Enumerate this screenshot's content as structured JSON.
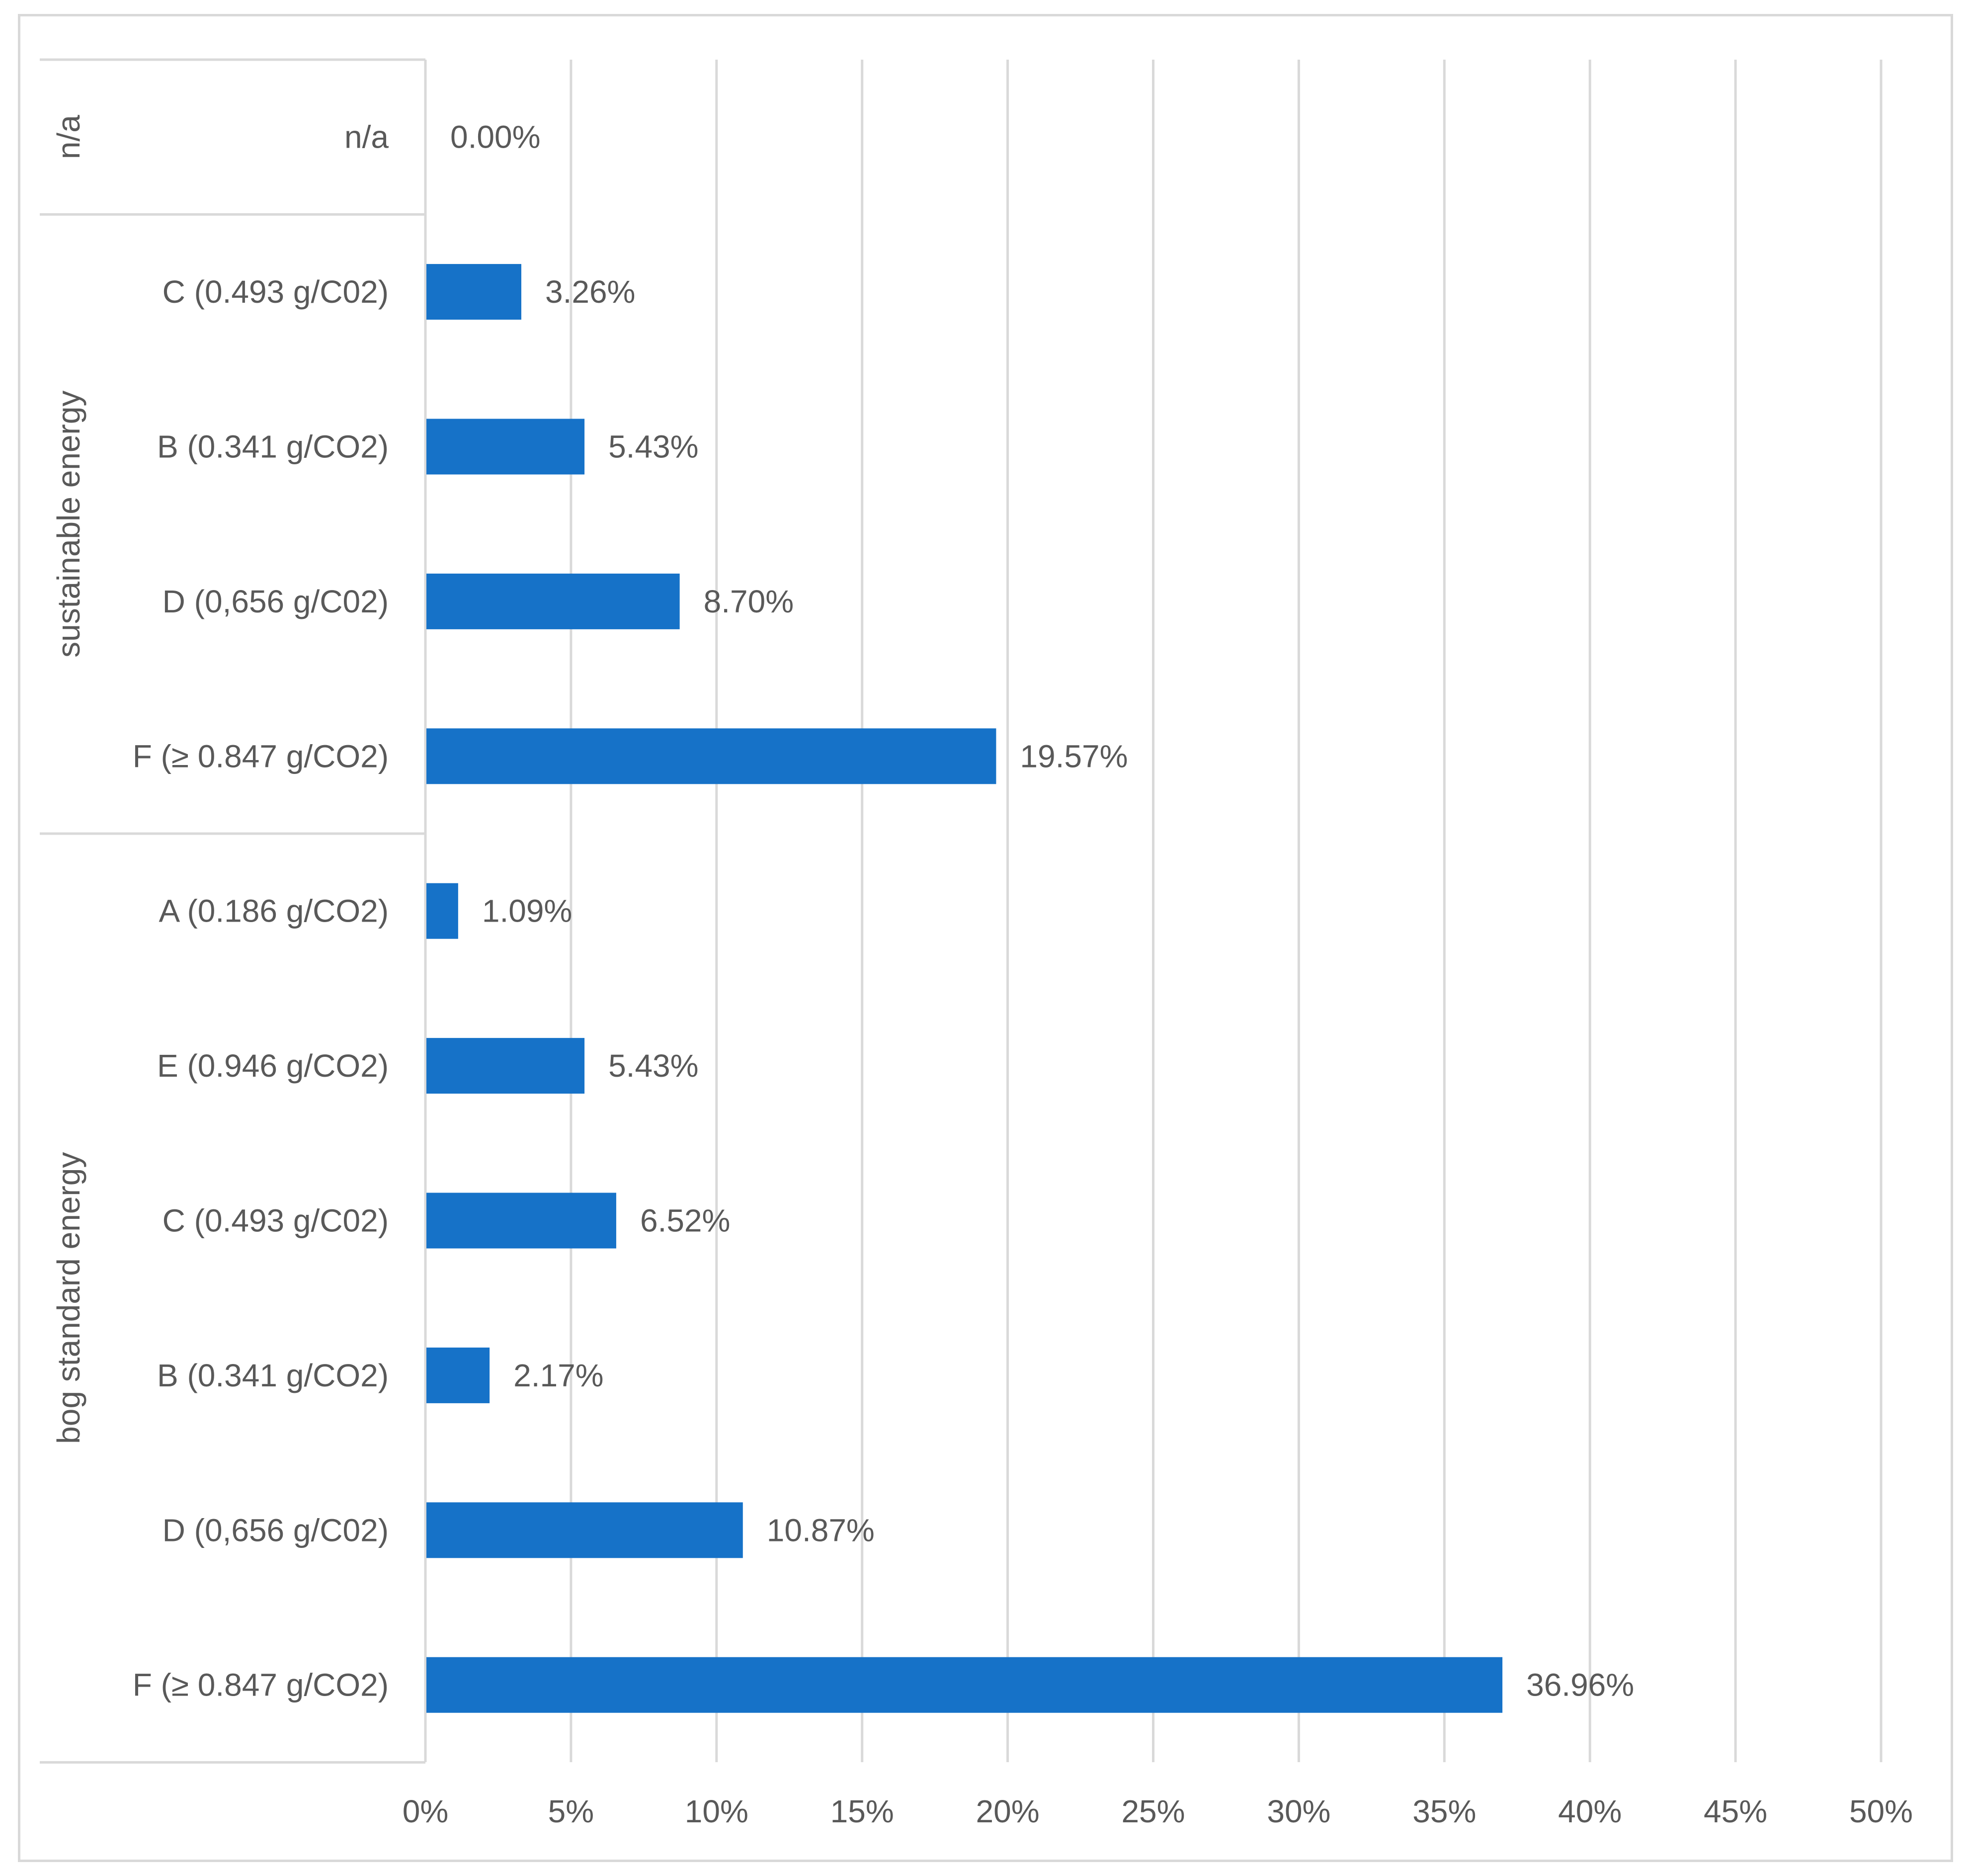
{
  "chart_data": {
    "type": "bar",
    "orientation": "horizontal",
    "title": "",
    "xlabel": "",
    "ylabel": "",
    "xlim": [
      0,
      0.5
    ],
    "x_ticks": [
      "0%",
      "5%",
      "10%",
      "15%",
      "20%",
      "25%",
      "30%",
      "35%",
      "40%",
      "45%",
      "50%"
    ],
    "grid": "vertical",
    "bar_color": "#1672c8",
    "groups": [
      {
        "name": "n/a",
        "categories": [
          {
            "label": "n/a",
            "value": 0.0,
            "data_label": "0.00%"
          }
        ]
      },
      {
        "name": "sustainable energy",
        "categories": [
          {
            "label": "C (0.493 g/C02)",
            "value": 0.0326,
            "data_label": "3.26%"
          },
          {
            "label": "B (0.341 g/CO2)",
            "value": 0.0543,
            "data_label": "5.43%"
          },
          {
            "label": "D (0,656 g/C02)",
            "value": 0.087,
            "data_label": "8.70%"
          },
          {
            "label": "F (≥ 0.847 g/CO2)",
            "value": 0.1957,
            "data_label": "19.57%"
          }
        ]
      },
      {
        "name": "bog standard energy",
        "categories": [
          {
            "label": "A (0.186 g/CO2)",
            "value": 0.0109,
            "data_label": "1.09%"
          },
          {
            "label": "E (0.946 g/CO2)",
            "value": 0.0543,
            "data_label": "5.43%"
          },
          {
            "label": "C (0.493 g/C02)",
            "value": 0.0652,
            "data_label": "6.52%"
          },
          {
            "label": "B (0.341 g/CO2)",
            "value": 0.0217,
            "data_label": "2.17%"
          },
          {
            "label": "D (0,656 g/C02)",
            "value": 0.1087,
            "data_label": "10.87%"
          },
          {
            "label": "F (≥ 0.847 g/CO2)",
            "value": 0.3696,
            "data_label": "36.96%"
          }
        ]
      }
    ]
  }
}
